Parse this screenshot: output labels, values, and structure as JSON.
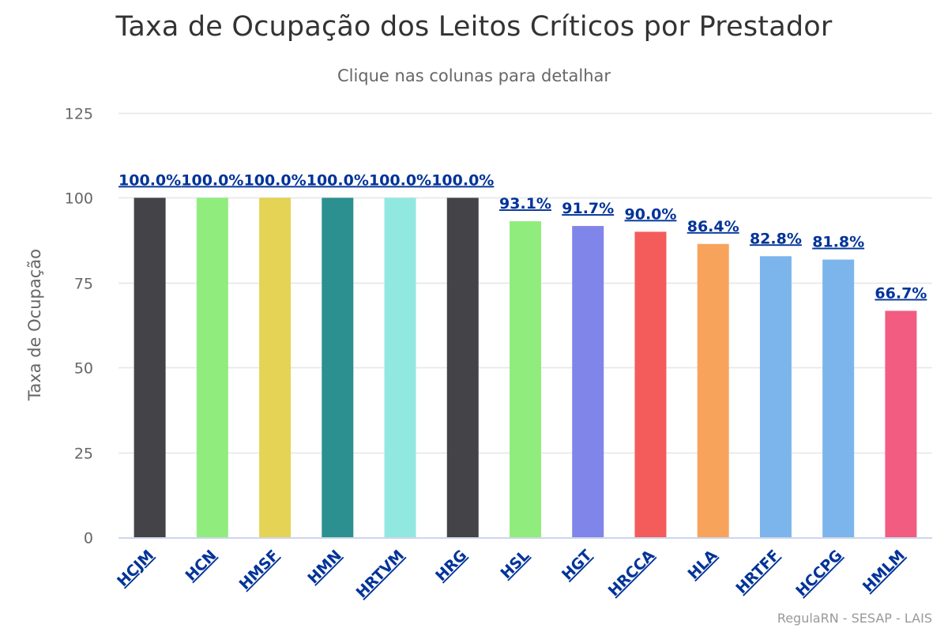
{
  "chart_data": {
    "type": "bar",
    "title": "Taxa de Ocupação dos Leitos Críticos por Prestador",
    "subtitle": "Clique nas colunas para detalhar",
    "xlabel": "",
    "ylabel": "Taxa de Ocupação",
    "ylim": [
      0,
      125
    ],
    "yticks": [
      0,
      25,
      50,
      75,
      100,
      125
    ],
    "grid": true,
    "legend": "none",
    "categories": [
      "HCJM",
      "HCN",
      "HMSF",
      "HMN",
      "HRTVM",
      "HRG",
      "HSL",
      "HGT",
      "HRCCA",
      "HLA",
      "HRTFF",
      "HCCPG",
      "HMLM"
    ],
    "values": [
      100.0,
      100.0,
      100.0,
      100.0,
      100.0,
      100.0,
      93.1,
      91.7,
      90.0,
      86.4,
      82.8,
      81.8,
      66.7
    ],
    "data_labels": [
      "100.0%",
      "100.0%",
      "100.0%",
      "100.0%",
      "100.0%",
      "100.0%",
      "93.1%",
      "91.7%",
      "90.0%",
      "86.4%",
      "82.8%",
      "81.8%",
      "66.7%"
    ],
    "colors": [
      "#434348",
      "#90ed7d",
      "#e4d354",
      "#2b908f",
      "#91e8e1",
      "#434348",
      "#90ed7d",
      "#8085e9",
      "#f45b5b",
      "#f7a35c",
      "#7cb5ec",
      "#7cb5ec",
      "#f15c80"
    ],
    "credits": "RegulaRN - SESAP - LAIS"
  },
  "style": {
    "link_color": "#003399",
    "grid_color": "#e6e6e6",
    "axis_color": "#ccd6eb"
  }
}
